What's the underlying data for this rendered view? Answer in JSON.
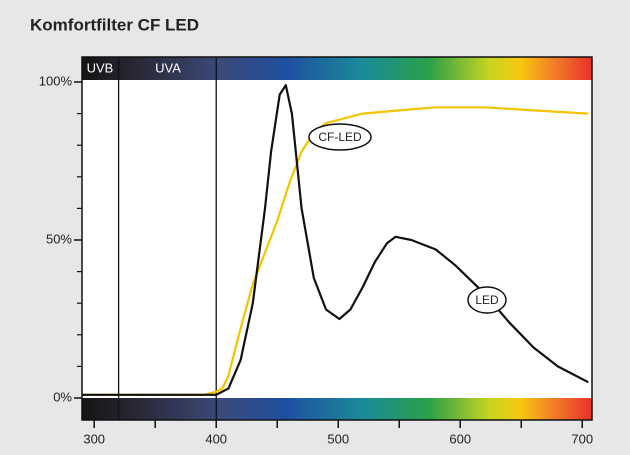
{
  "chart_data": {
    "type": "line",
    "title": "Komfortfilter CF LED",
    "xlim": [
      290,
      708
    ],
    "ylim": [
      0,
      100
    ],
    "xticks": [
      300,
      400,
      500,
      600,
      700
    ],
    "xminor_ticks": [
      350,
      450,
      550,
      650
    ],
    "yticks": [
      {
        "value": 0,
        "label": "0%"
      },
      {
        "value": 50,
        "label": "50%"
      },
      {
        "value": 100,
        "label": "100%"
      }
    ],
    "yminor_ticks": [
      10,
      20,
      30,
      40,
      60,
      70,
      80,
      90
    ],
    "band_labels": [
      "UVB",
      "UVA"
    ],
    "band_edges": [
      320,
      400
    ],
    "series": [
      {
        "name": "CF-LED",
        "color": "#f5c400",
        "x": [
          290,
          390,
          400,
          405,
          410,
          420,
          430,
          440,
          450,
          460,
          470,
          480,
          490,
          500,
          520,
          550,
          580,
          620,
          660,
          705
        ],
        "values": [
          1,
          1,
          2,
          3,
          7,
          22,
          36,
          46,
          56,
          68,
          78,
          84,
          87,
          88,
          90,
          91,
          92,
          92,
          91,
          90
        ]
      },
      {
        "name": "LED",
        "color": "#111111",
        "x": [
          290,
          350,
          400,
          410,
          420,
          430,
          440,
          445,
          452,
          457,
          462,
          470,
          480,
          490,
          501,
          510,
          520,
          530,
          540,
          547,
          560,
          580,
          596,
          620,
          640,
          660,
          680,
          705
        ],
        "values": [
          1,
          1,
          1,
          3,
          12,
          30,
          60,
          78,
          96,
          99,
          90,
          60,
          38,
          28,
          25,
          28,
          35,
          43,
          49,
          51,
          50,
          47,
          42,
          33,
          24,
          16,
          10,
          5
        ]
      }
    ]
  }
}
